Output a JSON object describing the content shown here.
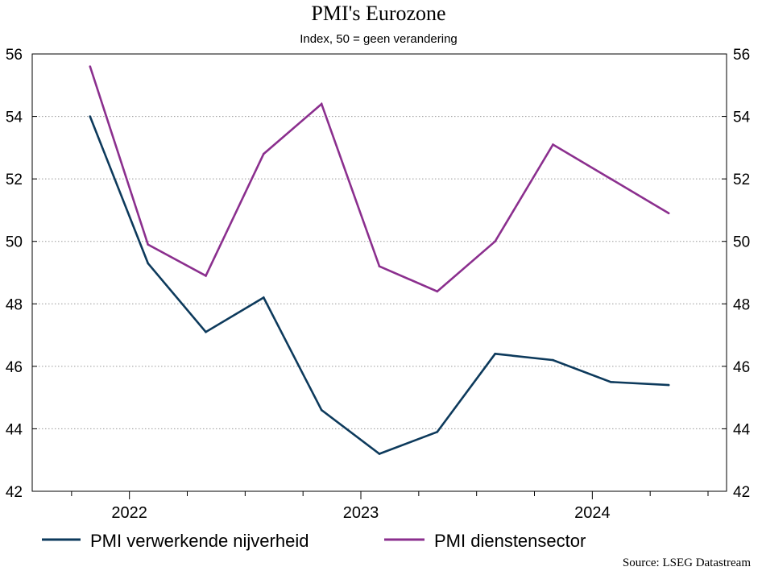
{
  "chart_data": {
    "type": "line",
    "title": "PMI's Eurozone",
    "subtitle": "Index, 50 = geen verandering",
    "source": "Source: LSEG Datastream",
    "x_tick_labels": [
      "2022",
      "2023",
      "2024"
    ],
    "x_ticks_at": [
      2022.0,
      2023.0,
      2024.0
    ],
    "x_range": [
      2021.58,
      2024.58
    ],
    "ylim": [
      42,
      56
    ],
    "y_ticks": [
      42,
      44,
      46,
      48,
      50,
      52,
      54,
      56
    ],
    "y_tick_labels": [
      "42",
      "44",
      "46",
      "48",
      "50",
      "52",
      "54",
      "56"
    ],
    "grid": "horizontal-dotted",
    "dual_y_axis": true,
    "legend_position": "bottom",
    "x": [
      2021.83,
      2022.08,
      2022.33,
      2022.58,
      2022.83,
      2023.08,
      2023.33,
      2023.58,
      2023.83,
      2024.08,
      2024.33
    ],
    "series": [
      {
        "name": "PMI verwerkende nijverheid",
        "color": "#0d3a5c",
        "values": [
          54.0,
          49.3,
          47.1,
          48.2,
          44.6,
          43.2,
          43.9,
          46.4,
          46.2,
          45.5,
          45.4
        ]
      },
      {
        "name": "PMI dienstensector",
        "color": "#8b2f8e",
        "values": [
          55.6,
          49.9,
          48.9,
          52.8,
          54.4,
          49.2,
          48.4,
          50.0,
          53.1,
          52.0,
          50.9
        ]
      }
    ]
  }
}
